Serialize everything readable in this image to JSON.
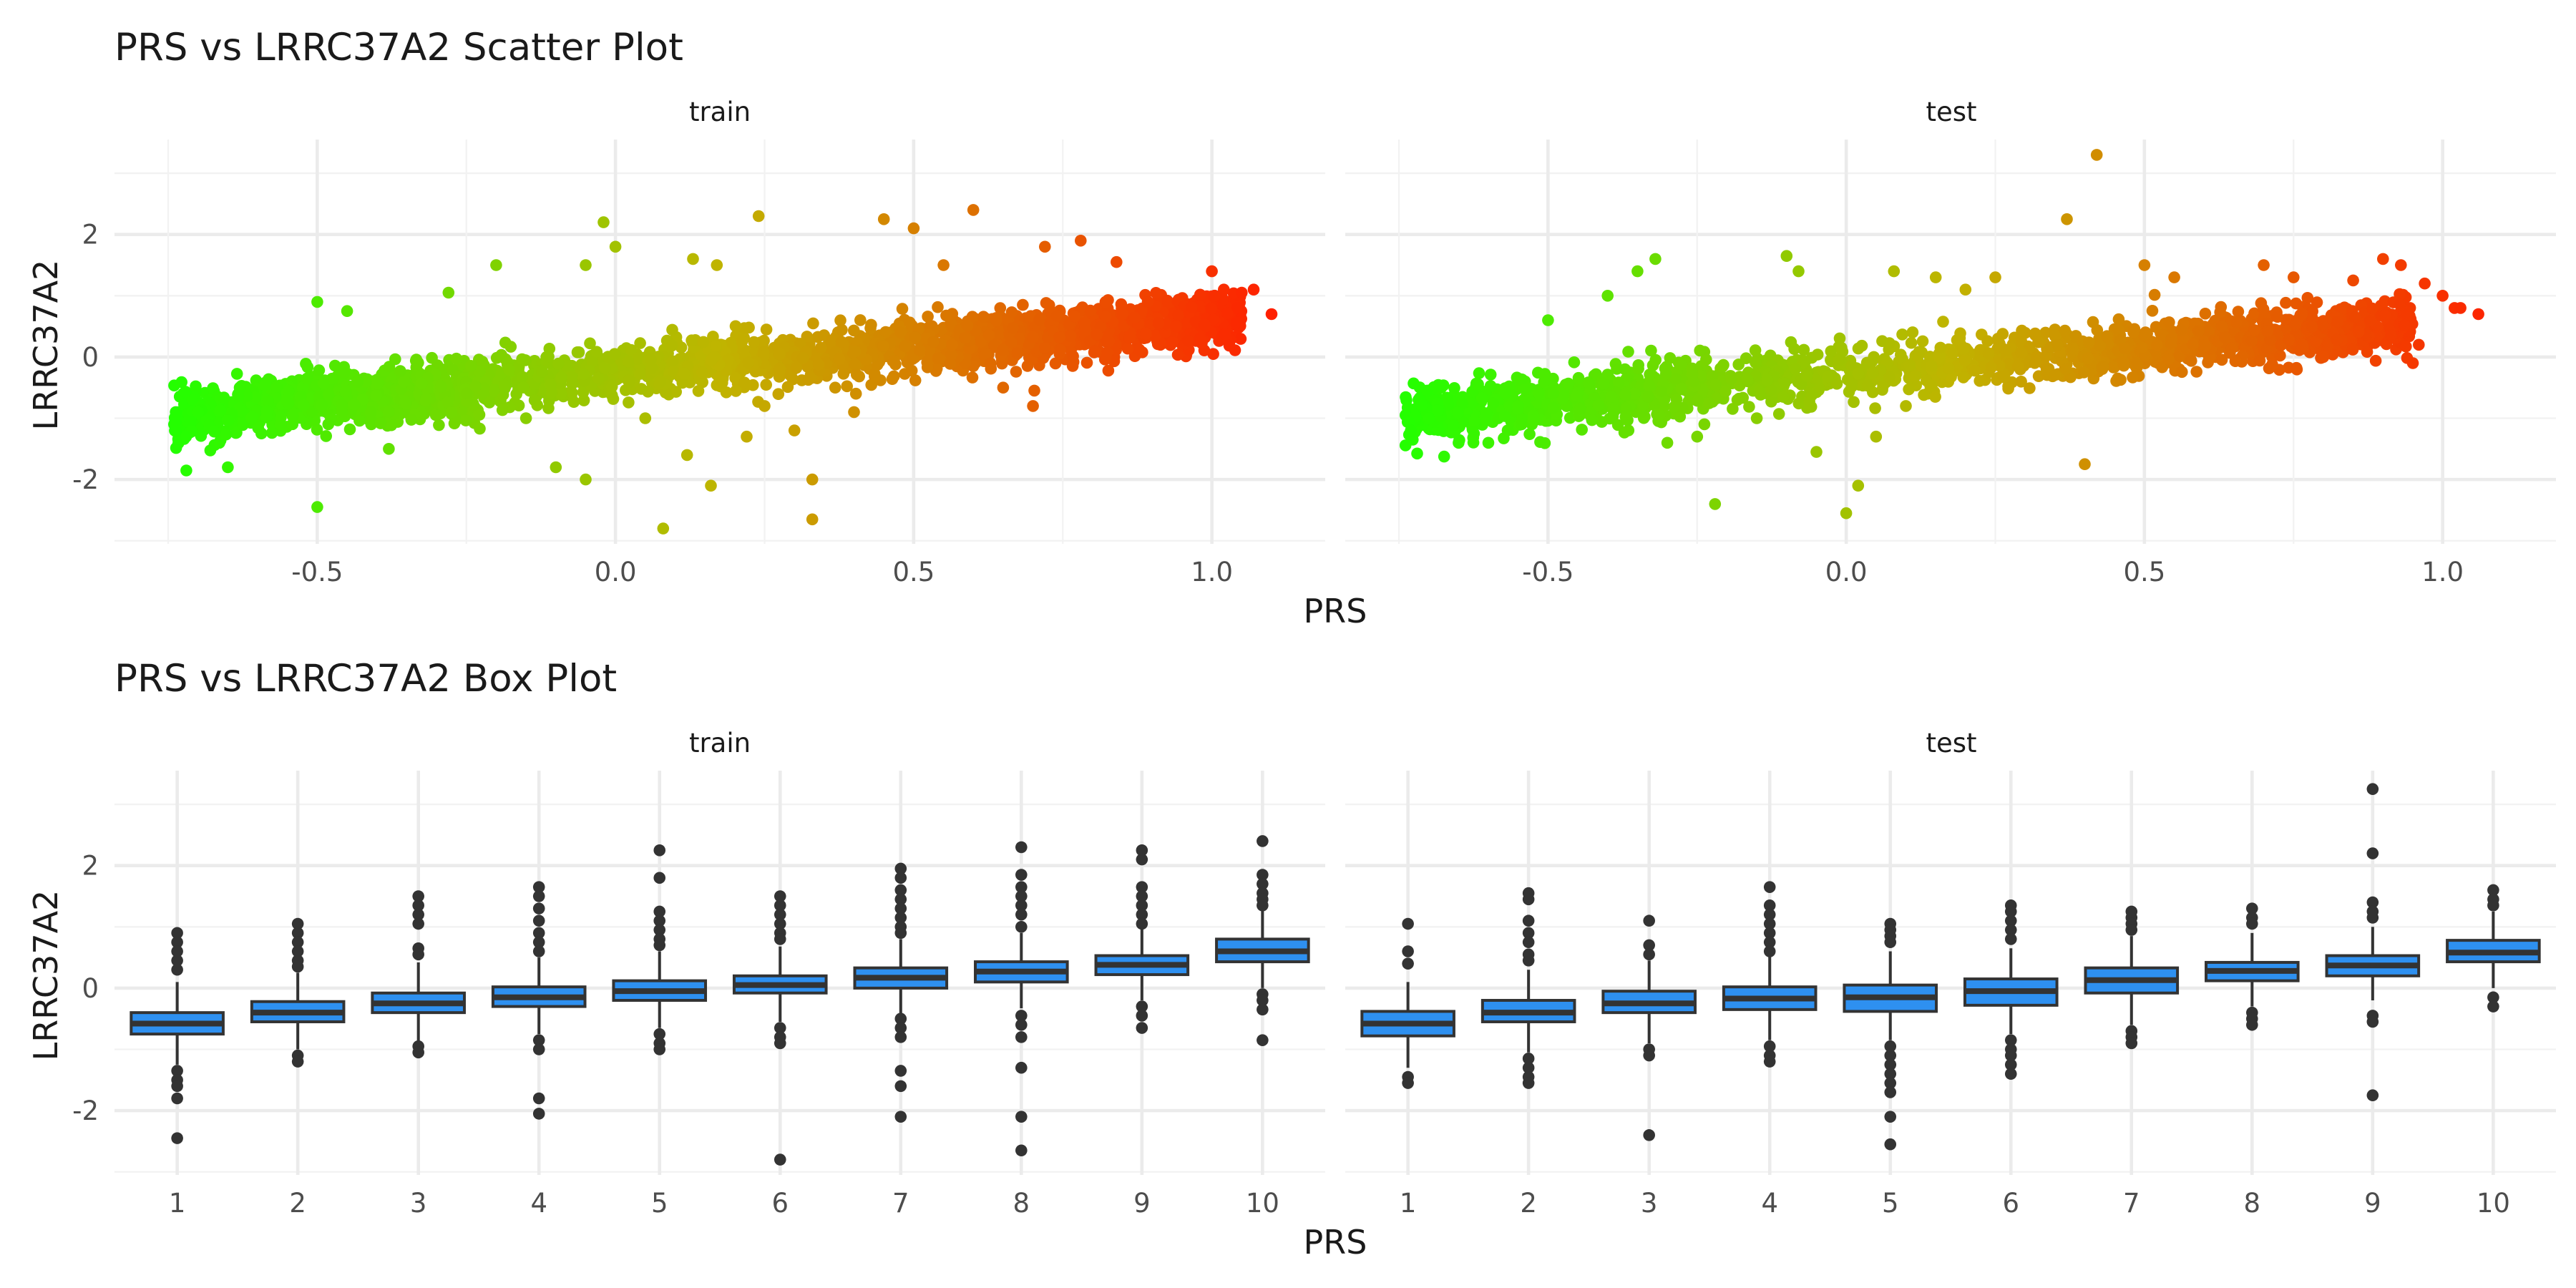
{
  "chart_data": [
    {
      "type": "scatter",
      "title": "PRS vs LRRC37A2 Scatter Plot",
      "xlabel": "PRS",
      "ylabel": "LRRC37A2",
      "xlim": [
        -0.84,
        1.19
      ],
      "ylim": [
        -3.05,
        3.55
      ],
      "x_ticks": [
        -0.5,
        0.0,
        0.5,
        1.0
      ],
      "x_tick_labels": [
        "-0.5",
        "0.0",
        "0.5",
        "1.0"
      ],
      "y_ticks": [
        -2,
        0,
        2
      ],
      "y_tick_labels": [
        "-2",
        "0",
        "2"
      ],
      "grid": true,
      "color_scale": {
        "low": "#22ff00",
        "mid": "#c0b400",
        "high": "#ff2000",
        "by": "PRS"
      },
      "panels": [
        {
          "name": "train",
          "trend": {
            "slope": 1.05,
            "intercept": -0.25,
            "x_range": [
              -0.74,
              1.05
            ]
          },
          "points": [
            [
              -0.74,
              -1.1
            ],
            [
              -0.72,
              -1.3
            ],
            [
              -0.7,
              -0.9
            ],
            [
              -0.65,
              -1.8
            ],
            [
              -0.63,
              -0.5
            ],
            [
              -0.5,
              -2.45
            ],
            [
              -0.5,
              0.9
            ],
            [
              -0.45,
              0.75
            ],
            [
              -0.38,
              -1.5
            ],
            [
              -0.28,
              1.05
            ],
            [
              -0.2,
              1.5
            ],
            [
              -0.15,
              -1.0
            ],
            [
              -0.1,
              -1.8
            ],
            [
              -0.05,
              1.5
            ],
            [
              -0.05,
              -2.0
            ],
            [
              -0.02,
              2.2
            ],
            [
              0.0,
              1.8
            ],
            [
              0.05,
              -1.0
            ],
            [
              0.08,
              -2.8
            ],
            [
              0.12,
              -1.6
            ],
            [
              0.13,
              1.6
            ],
            [
              0.16,
              -2.1
            ],
            [
              0.17,
              1.5
            ],
            [
              0.22,
              -1.3
            ],
            [
              0.24,
              2.3
            ],
            [
              0.25,
              -0.8
            ],
            [
              0.3,
              -1.2
            ],
            [
              0.33,
              -2.0
            ],
            [
              0.33,
              -2.65
            ],
            [
              0.4,
              -0.9
            ],
            [
              0.45,
              2.25
            ],
            [
              0.5,
              2.1
            ],
            [
              0.55,
              1.5
            ],
            [
              0.6,
              2.4
            ],
            [
              0.65,
              -0.5
            ],
            [
              0.7,
              -0.8
            ],
            [
              0.72,
              1.8
            ],
            [
              0.78,
              1.9
            ],
            [
              0.84,
              1.55
            ],
            [
              0.94,
              0.5
            ],
            [
              0.98,
              0.3
            ],
            [
              1.0,
              1.4
            ],
            [
              1.02,
              1.1
            ],
            [
              1.05,
              1.05
            ],
            [
              1.07,
              1.1
            ],
            [
              1.1,
              0.7
            ]
          ]
        },
        {
          "name": "test",
          "trend": {
            "slope": 1.05,
            "intercept": -0.25,
            "x_range": [
              -0.74,
              0.95
            ]
          },
          "points": [
            [
              -0.73,
              -1.2
            ],
            [
              -0.7,
              -1.0
            ],
            [
              -0.65,
              -1.4
            ],
            [
              -0.6,
              -1.4
            ],
            [
              -0.55,
              -0.8
            ],
            [
              -0.5,
              0.6
            ],
            [
              -0.4,
              1.0
            ],
            [
              -0.35,
              1.4
            ],
            [
              -0.32,
              1.6
            ],
            [
              -0.3,
              -1.4
            ],
            [
              -0.25,
              -1.3
            ],
            [
              -0.22,
              -2.4
            ],
            [
              -0.15,
              -1.0
            ],
            [
              -0.1,
              1.65
            ],
            [
              -0.08,
              1.4
            ],
            [
              -0.05,
              -1.55
            ],
            [
              0.0,
              -2.55
            ],
            [
              0.02,
              -2.1
            ],
            [
              0.05,
              -1.3
            ],
            [
              0.08,
              1.4
            ],
            [
              0.1,
              -0.8
            ],
            [
              0.15,
              1.3
            ],
            [
              0.2,
              1.1
            ],
            [
              0.25,
              1.3
            ],
            [
              0.37,
              2.25
            ],
            [
              0.4,
              -1.75
            ],
            [
              0.42,
              3.3
            ],
            [
              0.5,
              1.5
            ],
            [
              0.55,
              1.3
            ],
            [
              0.63,
              0.5
            ],
            [
              0.7,
              1.5
            ],
            [
              0.75,
              1.3
            ],
            [
              0.8,
              0.0
            ],
            [
              0.85,
              1.25
            ],
            [
              0.9,
              1.6
            ],
            [
              0.93,
              1.5
            ],
            [
              0.95,
              -0.1
            ],
            [
              0.96,
              0.2
            ],
            [
              0.97,
              1.2
            ],
            [
              1.0,
              1.0
            ],
            [
              1.02,
              0.8
            ],
            [
              1.03,
              0.8
            ],
            [
              1.06,
              0.7
            ]
          ]
        }
      ]
    },
    {
      "type": "box",
      "title": "PRS vs LRRC37A2 Box Plot",
      "xlabel": "PRS",
      "ylabel": "LRRC37A2",
      "categories": [
        "1",
        "2",
        "3",
        "4",
        "5",
        "6",
        "7",
        "8",
        "9",
        "10"
      ],
      "ylim": [
        -3.05,
        3.55
      ],
      "y_ticks": [
        -2,
        0,
        2
      ],
      "y_tick_labels": [
        "-2",
        "0",
        "2"
      ],
      "grid": true,
      "box_color": "#2e90f0",
      "panels": [
        {
          "name": "train",
          "boxes": [
            {
              "q1": -0.75,
              "median": -0.58,
              "q3": -0.4,
              "whisker_low": -1.25,
              "whisker_high": 0.1,
              "outliers": [
                0.9,
                0.75,
                0.6,
                0.45,
                0.3,
                -1.35,
                -1.5,
                -1.6,
                -1.8,
                -2.45
              ]
            },
            {
              "q1": -0.55,
              "median": -0.4,
              "q3": -0.22,
              "whisker_low": -1.0,
              "whisker_high": 0.25,
              "outliers": [
                1.05,
                0.9,
                0.75,
                0.6,
                0.45,
                0.35,
                -1.1,
                -1.2
              ]
            },
            {
              "q1": -0.4,
              "median": -0.25,
              "q3": -0.08,
              "whisker_low": -0.88,
              "whisker_high": 0.42,
              "outliers": [
                1.5,
                1.35,
                1.2,
                1.05,
                0.65,
                0.55,
                -0.95,
                -1.05
              ]
            },
            {
              "q1": -0.3,
              "median": -0.15,
              "q3": 0.02,
              "whisker_low": -0.75,
              "whisker_high": 0.5,
              "outliers": [
                1.65,
                1.5,
                1.3,
                1.1,
                0.9,
                0.75,
                0.6,
                -0.85,
                -1.0,
                -1.8,
                -2.05
              ]
            },
            {
              "q1": -0.2,
              "median": -0.05,
              "q3": 0.12,
              "whisker_low": -0.65,
              "whisker_high": 0.6,
              "outliers": [
                2.25,
                1.8,
                1.25,
                1.1,
                0.95,
                0.8,
                0.7,
                -0.75,
                -0.9,
                -1.0
              ]
            },
            {
              "q1": -0.08,
              "median": 0.05,
              "q3": 0.2,
              "whisker_low": -0.55,
              "whisker_high": 0.68,
              "outliers": [
                1.5,
                1.35,
                1.2,
                1.05,
                0.9,
                0.8,
                -0.65,
                -0.8,
                -0.9,
                -2.8
              ]
            },
            {
              "q1": 0.0,
              "median": 0.17,
              "q3": 0.33,
              "whisker_low": -0.42,
              "whisker_high": 0.8,
              "outliers": [
                1.95,
                1.8,
                1.6,
                1.45,
                1.3,
                1.15,
                1.0,
                0.9,
                -0.5,
                -0.65,
                -0.8,
                -1.35,
                -1.6,
                -2.1
              ]
            },
            {
              "q1": 0.1,
              "median": 0.27,
              "q3": 0.43,
              "whisker_low": -0.33,
              "whisker_high": 0.9,
              "outliers": [
                2.3,
                1.85,
                1.65,
                1.5,
                1.35,
                1.2,
                1.0,
                -0.45,
                -0.6,
                -0.8,
                -1.3,
                -2.1,
                -2.65
              ]
            },
            {
              "q1": 0.22,
              "median": 0.38,
              "q3": 0.53,
              "whisker_low": -0.2,
              "whisker_high": 0.98,
              "outliers": [
                2.25,
                2.1,
                1.65,
                1.5,
                1.35,
                1.2,
                1.05,
                -0.3,
                -0.45,
                -0.65
              ]
            },
            {
              "q1": 0.43,
              "median": 0.6,
              "q3": 0.8,
              "whisker_low": 0.0,
              "whisker_high": 1.3,
              "outliers": [
                2.4,
                1.85,
                1.7,
                1.55,
                1.45,
                1.35,
                -0.1,
                -0.2,
                -0.35,
                -0.85
              ]
            }
          ]
        },
        {
          "name": "test",
          "boxes": [
            {
              "q1": -0.78,
              "median": -0.58,
              "q3": -0.38,
              "whisker_low": -1.3,
              "whisker_high": 0.1,
              "outliers": [
                1.05,
                0.6,
                0.4,
                -1.45,
                -1.55
              ]
            },
            {
              "q1": -0.55,
              "median": -0.4,
              "q3": -0.2,
              "whisker_low": -1.05,
              "whisker_high": 0.3,
              "outliers": [
                1.55,
                1.45,
                1.1,
                0.9,
                0.75,
                0.55,
                0.45,
                -1.15,
                -1.3,
                -1.45,
                -1.55
              ]
            },
            {
              "q1": -0.4,
              "median": -0.25,
              "q3": -0.05,
              "whisker_low": -0.9,
              "whisker_high": 0.45,
              "outliers": [
                1.1,
                0.7,
                0.55,
                -1.0,
                -1.1,
                -2.4
              ]
            },
            {
              "q1": -0.35,
              "median": -0.17,
              "q3": 0.02,
              "whisker_low": -0.85,
              "whisker_high": 0.55,
              "outliers": [
                1.65,
                1.35,
                1.2,
                1.05,
                0.9,
                0.75,
                0.6,
                -0.95,
                -1.1,
                -1.2
              ]
            },
            {
              "q1": -0.38,
              "median": -0.15,
              "q3": 0.05,
              "whisker_low": -0.85,
              "whisker_high": 0.6,
              "outliers": [
                1.05,
                0.95,
                0.85,
                0.75,
                -0.95,
                -1.1,
                -1.25,
                -1.4,
                -1.55,
                -1.7,
                -2.1,
                -2.55
              ]
            },
            {
              "q1": -0.28,
              "median": -0.05,
              "q3": 0.15,
              "whisker_low": -0.75,
              "whisker_high": 0.65,
              "outliers": [
                1.35,
                1.25,
                1.1,
                0.95,
                0.8,
                -0.85,
                -1.0,
                -1.1,
                -1.25,
                -1.4
              ]
            },
            {
              "q1": -0.08,
              "median": 0.13,
              "q3": 0.33,
              "whisker_low": -0.6,
              "whisker_high": 0.85,
              "outliers": [
                1.25,
                1.15,
                1.05,
                0.95,
                -0.7,
                -0.8,
                -0.9
              ]
            },
            {
              "q1": 0.12,
              "median": 0.28,
              "q3": 0.42,
              "whisker_low": -0.3,
              "whisker_high": 0.9,
              "outliers": [
                1.3,
                1.15,
                1.05,
                -0.4,
                -0.5,
                -0.6
              ]
            },
            {
              "q1": 0.2,
              "median": 0.37,
              "q3": 0.53,
              "whisker_low": -0.2,
              "whisker_high": 1.0,
              "outliers": [
                3.25,
                2.2,
                1.4,
                1.25,
                1.15,
                -0.45,
                -0.55,
                -1.75
              ]
            },
            {
              "q1": 0.43,
              "median": 0.58,
              "q3": 0.78,
              "whisker_low": 0.0,
              "whisker_high": 1.25,
              "outliers": [
                1.6,
                1.45,
                1.35,
                -0.15,
                -0.3
              ]
            }
          ]
        }
      ]
    }
  ]
}
